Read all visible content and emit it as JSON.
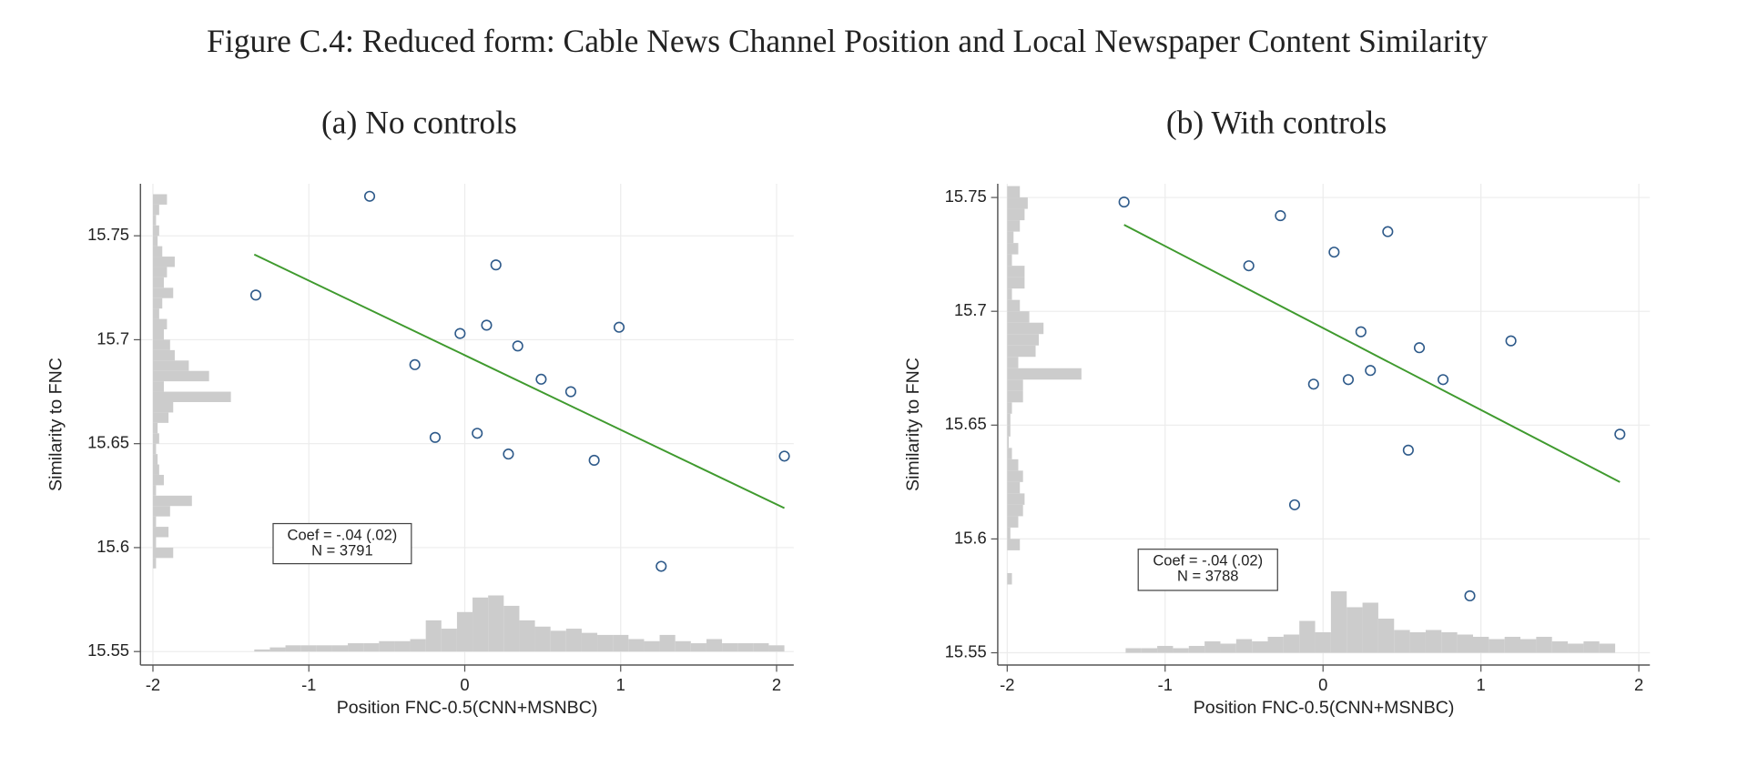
{
  "title": "Figure C.4: Reduced form: Cable News Channel Position and Local Newspaper Content Similarity",
  "chart_data": [
    {
      "type": "scatter",
      "title": "(a) No controls",
      "x_label": "Position FNC-0.5(CNN+MSNBC)",
      "y_label": "Similarity to FNC",
      "xlim": [
        -2.08,
        2.11
      ],
      "ylim": [
        15.5435,
        15.775
      ],
      "xticks": [
        -2,
        -1,
        0,
        1,
        2
      ],
      "yticks": [
        15.55,
        15.6,
        15.65,
        15.7,
        15.75
      ],
      "grid": true,
      "series": [
        {
          "color": "#2e5a8a",
          "x": [
            -1.34,
            -0.61,
            -0.32,
            -0.19,
            -0.03,
            0.08,
            0.14,
            0.2,
            0.28,
            0.34,
            0.49,
            0.68,
            0.83,
            0.99,
            1.26,
            2.05
          ],
          "values": [
            15.7215,
            15.769,
            15.688,
            15.653,
            15.703,
            15.655,
            15.707,
            15.736,
            15.645,
            15.697,
            15.681,
            15.675,
            15.642,
            15.706,
            15.591,
            15.644
          ]
        }
      ],
      "fit_line": {
        "color": "#3f9a2e",
        "x": [
          -1.35,
          2.05
        ],
        "values": [
          15.741,
          15.619
        ]
      },
      "annotation": [
        "Coef = -.04 (.02)",
        "N = 3791"
      ],
      "x_histogram": {
        "color": "#cccccc",
        "bins": [
          -1.35,
          -1.25,
          -1.15,
          -1.05,
          -0.95,
          -0.85,
          -0.75,
          -0.65,
          -0.55,
          -0.45,
          -0.35,
          -0.25,
          -0.15,
          -0.05,
          0.05,
          0.15,
          0.25,
          0.35,
          0.45,
          0.55,
          0.65,
          0.75,
          0.85,
          0.95,
          1.05,
          1.15,
          1.25,
          1.35,
          1.45,
          1.55,
          1.65,
          1.75,
          1.85,
          1.95,
          2.05
        ],
        "values": [
          0.001,
          0.002,
          0.003,
          0.003,
          0.003,
          0.003,
          0.004,
          0.004,
          0.005,
          0.005,
          0.006,
          0.015,
          0.011,
          0.019,
          0.026,
          0.027,
          0.022,
          0.015,
          0.012,
          0.01,
          0.011,
          0.009,
          0.008,
          0.008,
          0.006,
          0.005,
          0.008,
          0.005,
          0.004,
          0.006,
          0.004,
          0.004,
          0.004,
          0.003
        ]
      },
      "y_histogram": {
        "color": "#cccccc",
        "bins": [
          15.59,
          15.595,
          15.6,
          15.605,
          15.61,
          15.615,
          15.62,
          15.625,
          15.63,
          15.635,
          15.64,
          15.645,
          15.65,
          15.655,
          15.66,
          15.665,
          15.67,
          15.675,
          15.68,
          15.685,
          15.69,
          15.695,
          15.7,
          15.705,
          15.71,
          15.715,
          15.72,
          15.725,
          15.73,
          15.735,
          15.74,
          15.745,
          15.75,
          15.755,
          15.76,
          15.765,
          15.77
        ],
        "values": [
          0.02,
          0.13,
          0.02,
          0.1,
          0.02,
          0.11,
          0.25,
          0.02,
          0.07,
          0.04,
          0.03,
          0.02,
          0.04,
          0.03,
          0.1,
          0.13,
          0.5,
          0.07,
          0.36,
          0.23,
          0.14,
          0.11,
          0.07,
          0.09,
          0.04,
          0.06,
          0.13,
          0.07,
          0.09,
          0.14,
          0.06,
          0.03,
          0.04,
          0.02,
          0.04,
          0.09
        ]
      }
    },
    {
      "type": "scatter",
      "title": "(b) With controls",
      "x_label": "Position FNC-0.5(CNN+MSNBC)",
      "y_label": "Similarity to FNC",
      "xlim": [
        -2.06,
        2.07
      ],
      "ylim": [
        15.5446,
        15.756
      ],
      "xticks": [
        -2,
        -1,
        0,
        1,
        2
      ],
      "yticks": [
        15.55,
        15.6,
        15.65,
        15.7,
        15.75
      ],
      "grid": true,
      "series": [
        {
          "color": "#2e5a8a",
          "x": [
            -1.26,
            -0.47,
            -0.27,
            -0.06,
            -0.18,
            0.07,
            0.16,
            0.24,
            0.3,
            0.41,
            0.54,
            0.61,
            0.76,
            0.93,
            1.19,
            1.88
          ],
          "values": [
            15.748,
            15.72,
            15.742,
            15.668,
            15.615,
            15.726,
            15.67,
            15.691,
            15.674,
            15.735,
            15.639,
            15.684,
            15.67,
            15.575,
            15.687,
            15.646
          ]
        }
      ],
      "fit_line": {
        "color": "#3f9a2e",
        "x": [
          -1.26,
          1.88
        ],
        "values": [
          15.738,
          15.625
        ]
      },
      "annotation": [
        "Coef = -.04 (.02)",
        "N = 3788"
      ],
      "x_histogram": {
        "color": "#cccccc",
        "bins": [
          -1.25,
          -1.15,
          -1.05,
          -0.95,
          -0.85,
          -0.75,
          -0.65,
          -0.55,
          -0.45,
          -0.35,
          -0.25,
          -0.15,
          -0.05,
          0.05,
          0.15,
          0.25,
          0.35,
          0.45,
          0.55,
          0.65,
          0.75,
          0.85,
          0.95,
          1.05,
          1.15,
          1.25,
          1.35,
          1.45,
          1.55,
          1.65,
          1.75,
          1.85
        ],
        "values": [
          0.002,
          0.002,
          0.003,
          0.002,
          0.003,
          0.005,
          0.004,
          0.006,
          0.005,
          0.007,
          0.008,
          0.014,
          0.009,
          0.027,
          0.02,
          0.022,
          0.015,
          0.01,
          0.009,
          0.01,
          0.009,
          0.008,
          0.007,
          0.006,
          0.007,
          0.006,
          0.007,
          0.005,
          0.004,
          0.005,
          0.004
        ]
      },
      "y_histogram": {
        "color": "#cccccc",
        "bins": [
          15.58,
          15.585,
          15.59,
          15.595,
          15.6,
          15.605,
          15.61,
          15.615,
          15.62,
          15.625,
          15.63,
          15.635,
          15.64,
          15.645,
          15.65,
          15.655,
          15.66,
          15.665,
          15.67,
          15.675,
          15.68,
          15.685,
          15.69,
          15.695,
          15.7,
          15.705,
          15.71,
          15.715,
          15.72,
          15.725,
          15.73,
          15.735,
          15.74,
          15.745,
          15.75,
          15.755
        ],
        "values": [
          0.03,
          0,
          0,
          0.08,
          0.02,
          0.07,
          0.1,
          0.11,
          0.08,
          0.1,
          0.07,
          0.03,
          0.01,
          0.02,
          0.02,
          0.03,
          0.1,
          0.1,
          0.47,
          0.07,
          0.18,
          0.2,
          0.23,
          0.14,
          0.08,
          0.03,
          0.11,
          0.11,
          0.03,
          0.07,
          0.04,
          0.08,
          0.11,
          0.13,
          0.08
        ]
      }
    }
  ]
}
